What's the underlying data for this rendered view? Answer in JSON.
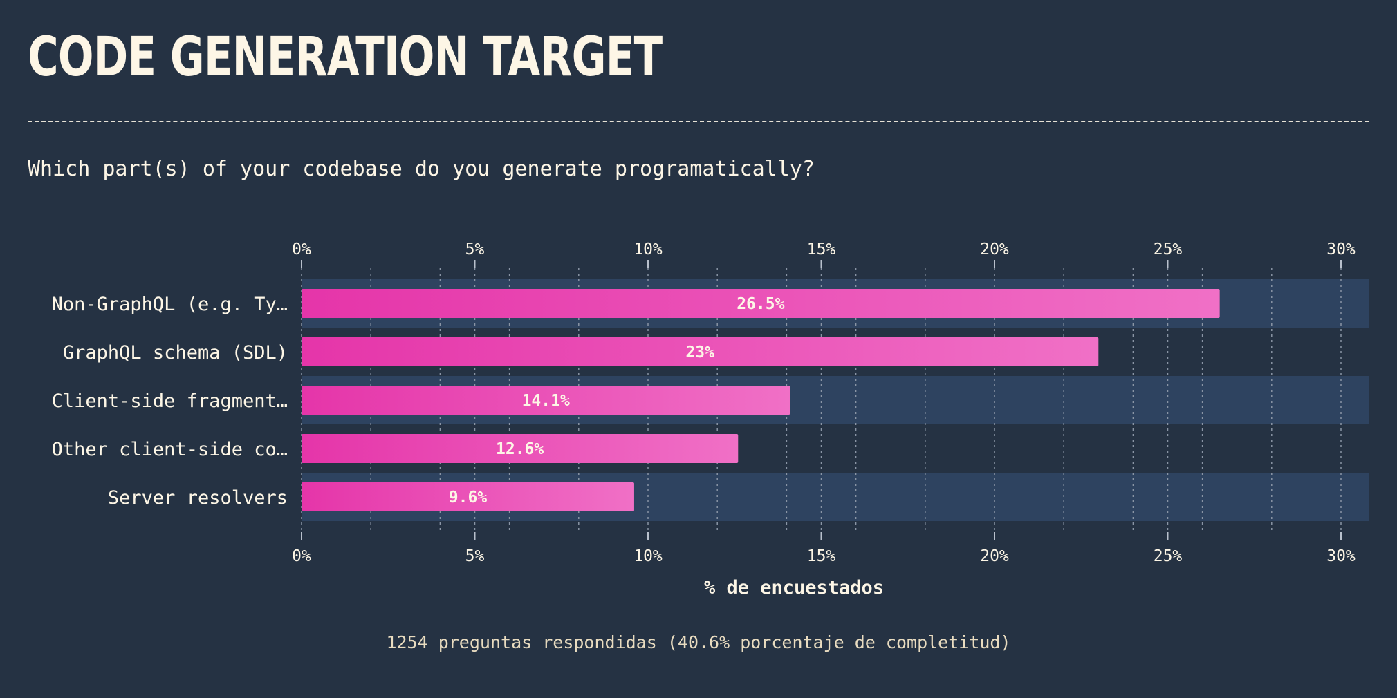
{
  "title": "CODE GENERATION TARGET",
  "question": "Which part(s) of your codebase do you generate programatically?",
  "footnote": "1254 preguntas respondidas (40.6% porcentaje de completitud)",
  "colors": {
    "background": "#253243",
    "band": "#2e4360",
    "bar_start": "#e535a9",
    "bar_end": "#f070c6",
    "text": "#fdf6e6"
  },
  "chart_data": {
    "type": "bar",
    "orientation": "horizontal",
    "categories": [
      "Non-GraphQL (e.g. Ty…",
      "GraphQL schema (SDL)",
      "Client-side fragment…",
      "Other client-side co…",
      "Server resolvers"
    ],
    "values": [
      26.5,
      23,
      14.1,
      12.6,
      9.6
    ],
    "value_labels": [
      "26.5%",
      "23%",
      "14.1%",
      "12.6%",
      "9.6%"
    ],
    "xlabel": "% de encuestados",
    "xlim": [
      0,
      30.8
    ],
    "xticks": [
      0,
      5,
      10,
      15,
      20,
      25,
      30
    ],
    "xtick_labels": [
      "0%",
      "5%",
      "10%",
      "15%",
      "20%",
      "25%",
      "30%"
    ],
    "grid": true,
    "axis_position": "top and bottom"
  }
}
